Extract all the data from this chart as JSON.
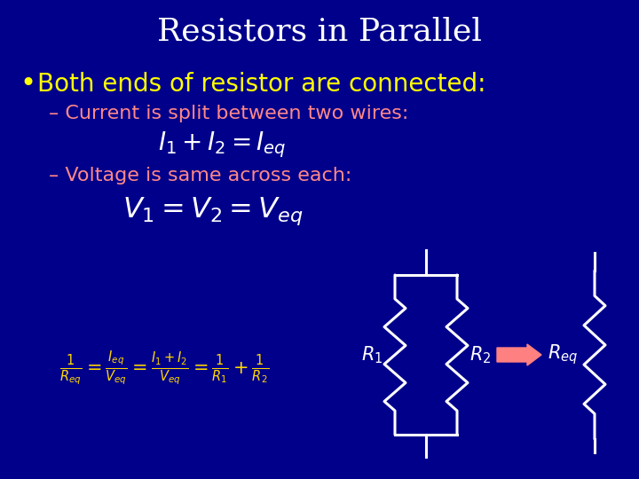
{
  "background_color": "#00008B",
  "title": "Resistors in Parallel",
  "title_color": "#FFFFFF",
  "title_fontsize": 26,
  "bullet_color": "#FFFF00",
  "bullet_text": "Both ends of resistor are connected:",
  "bullet_fontsize": 20,
  "sub_color": "#FF8888",
  "sub1_text": "– Current is split between two wires:",
  "sub2_text": "– Voltage is same across each:",
  "sub_fontsize": 16,
  "eq1_color": "#FFFFFF",
  "eq2_color": "#FFFFFF",
  "eq_fontsize": 20,
  "formula_color": "#FFD700",
  "formula_fontsize": 15,
  "resistor_color": "#FFFFFF",
  "label_color": "#FFFFFF",
  "arrow_color": "#FF8080",
  "label_fontsize": 15
}
